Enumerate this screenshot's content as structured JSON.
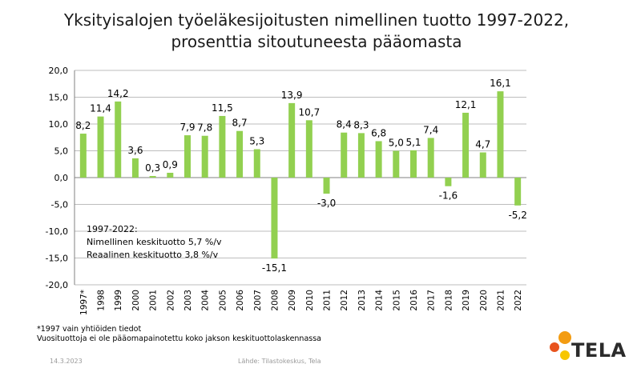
{
  "title_line1": "Yksityisalojen työeläkesijoitusten nimellinen tuotto 1997-2022,",
  "title_line2": "prosenttia sitoutuneesta pääomasta",
  "annotation": {
    "line1": "1997-2022:",
    "line2": "Nimellinen keskituotto 5,7 %/v",
    "line3": "Reaalinen keskituotto 3,8 %/v"
  },
  "notes": {
    "line1": "*1997 vain yhtiöiden tiedot",
    "line2": "Vuosituottoja ei ole pääomapainotettu koko jakson keskituottolaskennassa"
  },
  "footer": {
    "date": "14.3.2023",
    "source": "Lähde: Tilastokeskus, Tela"
  },
  "logo": {
    "text": "TELA",
    "colors": [
      "#f39c12",
      "#e8541e",
      "#f7c600"
    ]
  },
  "chart_data": {
    "type": "bar",
    "categories": [
      "1997*",
      "1998",
      "1999",
      "2000",
      "2001",
      "2002",
      "2003",
      "2004",
      "2005",
      "2006",
      "2007",
      "2008",
      "2009",
      "2010",
      "2011",
      "2012",
      "2013",
      "2014",
      "2015",
      "2016",
      "2017",
      "2018",
      "2019",
      "2020",
      "2021",
      "2022"
    ],
    "values": [
      8.2,
      11.4,
      14.2,
      3.6,
      0.3,
      0.9,
      7.9,
      7.8,
      11.5,
      8.7,
      5.3,
      -15.1,
      13.9,
      10.7,
      -3.0,
      8.4,
      8.3,
      6.8,
      5.0,
      5.1,
      7.4,
      -1.6,
      12.1,
      4.7,
      16.1,
      -5.2
    ],
    "data_labels": [
      "8,2",
      "11,4",
      "14,2",
      "3,6",
      "0,3",
      "0,9",
      "7,9",
      "7,8",
      "11,5",
      "8,7",
      "5,3",
      "-15,1",
      "13,9",
      "10,7",
      "-3,0",
      "8,4",
      "8,3",
      "6,8",
      "5,0",
      "5,1",
      "7,4",
      "-1,6",
      "12,1",
      "4,7",
      "16,1",
      "-5,2"
    ],
    "y_ticks": [
      "20,0",
      "15,0",
      "10,0",
      "5,0",
      "0,0",
      "-5,0",
      "-10,0",
      "-15,0",
      "-20,0"
    ],
    "ylim": [
      -20,
      20
    ],
    "grid": true,
    "bar_color": "#92d050"
  }
}
